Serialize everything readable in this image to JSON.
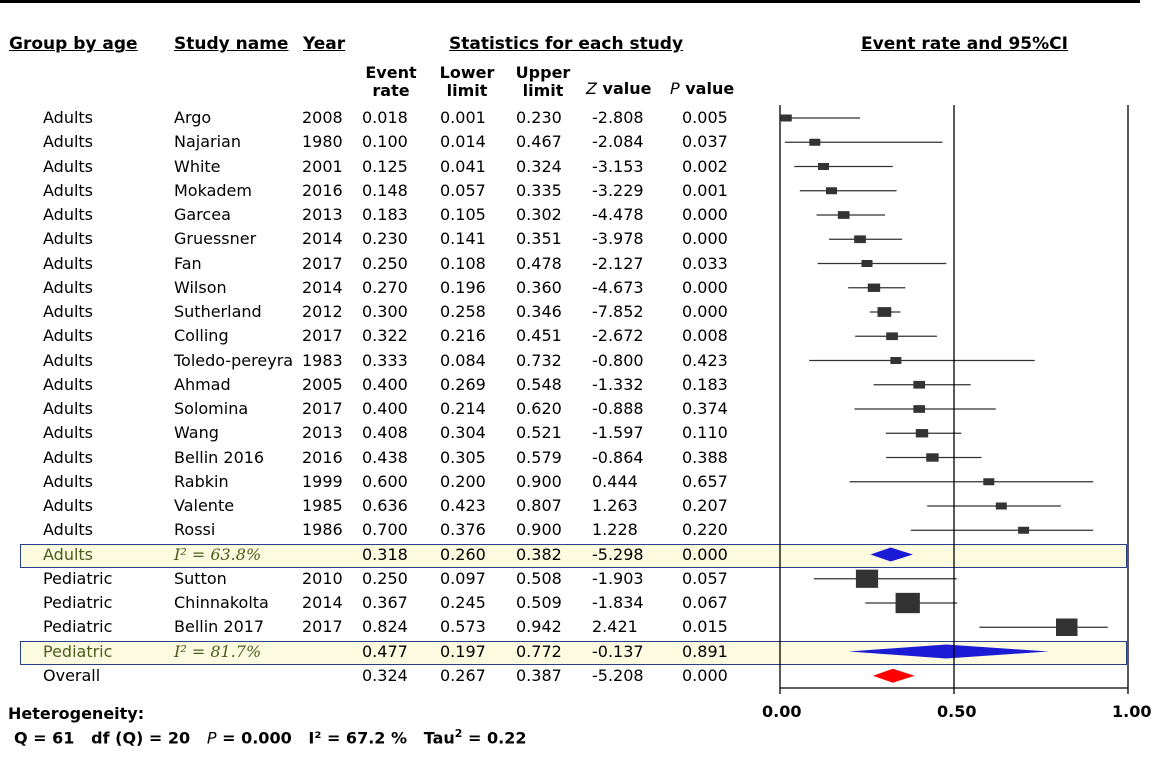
{
  "headers": {
    "group": "Group by age",
    "study": "Study name",
    "year": "Year",
    "stats": "Statistics for each study",
    "plot": "Event rate and 95%CI",
    "event_rate": "Event rate",
    "lower": "Lower limit",
    "upper": "Upper limit",
    "z_letter": "Z",
    "z_rest": " value",
    "p_letter": "P",
    "p_rest": " value"
  },
  "chart_data": {
    "type": "forest",
    "xlim": [
      0,
      1
    ],
    "ticks": [
      "0.00",
      "0.50",
      "1.00"
    ],
    "rows": [
      {
        "kind": "study",
        "group": "Adults",
        "study": "Argo",
        "year": "2008",
        "rate": "0.018",
        "lower": "0.001",
        "upper": "0.230",
        "z": "-2.808",
        "p": "0.005",
        "weight": 1
      },
      {
        "kind": "study",
        "group": "Adults",
        "study": "Najarian",
        "year": "1980",
        "rate": "0.100",
        "lower": "0.014",
        "upper": "0.467",
        "z": "-2.084",
        "p": "0.037",
        "weight": 1
      },
      {
        "kind": "study",
        "group": "Adults",
        "study": "White",
        "year": "2001",
        "rate": "0.125",
        "lower": "0.041",
        "upper": "0.324",
        "z": "-3.153",
        "p": "0.002",
        "weight": 1
      },
      {
        "kind": "study",
        "group": "Adults",
        "study": "Mokadem",
        "year": "2016",
        "rate": "0.148",
        "lower": "0.057",
        "upper": "0.335",
        "z": "-3.229",
        "p": "0.001",
        "weight": 1
      },
      {
        "kind": "study",
        "group": "Adults",
        "study": "Garcea",
        "year": "2013",
        "rate": "0.183",
        "lower": "0.105",
        "upper": "0.302",
        "z": "-4.478",
        "p": "0.000",
        "weight": 1.1
      },
      {
        "kind": "study",
        "group": "Adults",
        "study": "Gruessner",
        "year": "2014",
        "rate": "0.230",
        "lower": "0.141",
        "upper": "0.351",
        "z": "-3.978",
        "p": "0.000",
        "weight": 1.1
      },
      {
        "kind": "study",
        "group": "Adults",
        "study": "Fan",
        "year": "2017",
        "rate": "0.250",
        "lower": "0.108",
        "upper": "0.478",
        "z": "-2.127",
        "p": "0.033",
        "weight": 1
      },
      {
        "kind": "study",
        "group": "Adults",
        "study": "Wilson",
        "year": "2014",
        "rate": "0.270",
        "lower": "0.196",
        "upper": "0.360",
        "z": "-4.673",
        "p": "0.000",
        "weight": 1.2
      },
      {
        "kind": "study",
        "group": "Adults",
        "study": "Sutherland",
        "year": "2012",
        "rate": "0.300",
        "lower": "0.258",
        "upper": "0.346",
        "z": "-7.852",
        "p": "0.000",
        "weight": 1.4
      },
      {
        "kind": "study",
        "group": "Adults",
        "study": "Colling",
        "year": "2017",
        "rate": "0.322",
        "lower": "0.216",
        "upper": "0.451",
        "z": "-2.672",
        "p": "0.008",
        "weight": 1.1
      },
      {
        "kind": "study",
        "group": "Adults",
        "study": "Toledo-pereyra",
        "year": "1983",
        "rate": "0.333",
        "lower": "0.084",
        "upper": "0.732",
        "z": "-0.800",
        "p": "0.423",
        "weight": 1
      },
      {
        "kind": "study",
        "group": "Adults",
        "study": "Ahmad",
        "year": "2005",
        "rate": "0.400",
        "lower": "0.269",
        "upper": "0.548",
        "z": "-1.332",
        "p": "0.183",
        "weight": 1.1
      },
      {
        "kind": "study",
        "group": "Adults",
        "study": "Solomina",
        "year": "2017",
        "rate": "0.400",
        "lower": "0.214",
        "upper": "0.620",
        "z": "-0.888",
        "p": "0.374",
        "weight": 1.1
      },
      {
        "kind": "study",
        "group": "Adults",
        "study": "Wang",
        "year": "2013",
        "rate": "0.408",
        "lower": "0.304",
        "upper": "0.521",
        "z": "-1.597",
        "p": "0.110",
        "weight": 1.2
      },
      {
        "kind": "study",
        "group": "Adults",
        "study": "Bellin 2016",
        "year": "2016",
        "rate": "0.438",
        "lower": "0.305",
        "upper": "0.579",
        "z": "-0.864",
        "p": "0.388",
        "weight": 1.2
      },
      {
        "kind": "study",
        "group": "Adults",
        "study": "Rabkin",
        "year": "1999",
        "rate": "0.600",
        "lower": "0.200",
        "upper": "0.900",
        "z": "0.444",
        "p": "0.657",
        "weight": 1
      },
      {
        "kind": "study",
        "group": "Adults",
        "study": "Valente",
        "year": "1985",
        "rate": "0.636",
        "lower": "0.423",
        "upper": "0.807",
        "z": "1.263",
        "p": "0.207",
        "weight": 1
      },
      {
        "kind": "study",
        "group": "Adults",
        "study": "Rossi",
        "year": "1986",
        "rate": "0.700",
        "lower": "0.376",
        "upper": "0.900",
        "z": "1.228",
        "p": "0.220",
        "weight": 1
      },
      {
        "kind": "subgroup",
        "group": "Adults",
        "study": "I² = 63.8%",
        "year": "",
        "rate": "0.318",
        "lower": "0.260",
        "upper": "0.382",
        "z": "-5.298",
        "p": "0.000",
        "diamond_color": "#1b1bd6"
      },
      {
        "kind": "study",
        "group": "Pediatric",
        "study": "Sutton",
        "year": "2010",
        "rate": "0.250",
        "lower": "0.097",
        "upper": "0.508",
        "z": "-1.903",
        "p": "0.057",
        "weight": 2.6
      },
      {
        "kind": "study",
        "group": "Pediatric",
        "study": "Chinnakolta",
        "year": "2014",
        "rate": "0.367",
        "lower": "0.245",
        "upper": "0.509",
        "z": "-1.834",
        "p": "0.067",
        "weight": 2.9
      },
      {
        "kind": "study",
        "group": "Pediatric",
        "study": "Bellin 2017",
        "year": "2017",
        "rate": "0.824",
        "lower": "0.573",
        "upper": "0.942",
        "z": "2.421",
        "p": "0.015",
        "weight": 2.5
      },
      {
        "kind": "subgroup",
        "group": "Pediatric",
        "study": "I² = 81.7%",
        "year": "",
        "rate": "0.477",
        "lower": "0.197",
        "upper": "0.772",
        "z": "-0.137",
        "p": "0.891",
        "diamond_color": "#1b1bd6"
      },
      {
        "kind": "overall",
        "group": "Overall",
        "study": "",
        "year": "",
        "rate": "0.324",
        "lower": "0.267",
        "upper": "0.387",
        "z": "-5.208",
        "p": "0.000",
        "diamond_color": "#ff0000"
      }
    ]
  },
  "heterogeneity": {
    "title": "Heterogeneity:",
    "q": "Q = 61",
    "df": "df (Q) = 20",
    "p_letter": "P",
    "p_rest": " = 0.000",
    "i2": "I² = 67.2 %",
    "tau_label": "Tau",
    "tau_sup": "2",
    "tau_rest": " = 0.22"
  }
}
